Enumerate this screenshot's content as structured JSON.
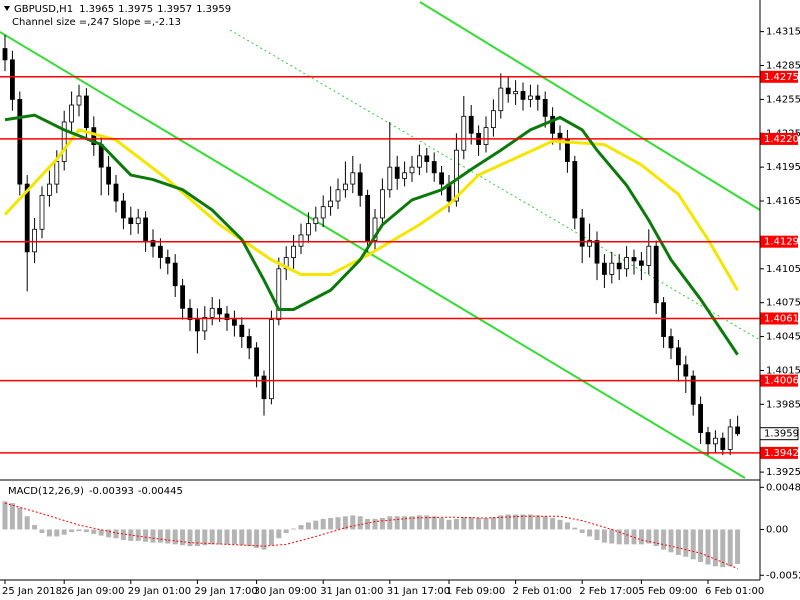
{
  "chart_data": [
    {
      "type": "candlestick",
      "symbol": "GBPUSD,H1",
      "channel_info": "Channel size =,247 Slope =,-2.13",
      "categories": [
        "25 Jan 2018",
        null,
        null,
        null,
        null,
        null,
        null,
        null,
        "26 Jan 09:00",
        null,
        null,
        null,
        null,
        null,
        null,
        null,
        null,
        "29 Jan 01:00",
        null,
        null,
        null,
        null,
        null,
        null,
        null,
        null,
        "29 Jan 17:00",
        null,
        null,
        null,
        null,
        null,
        null,
        null,
        "30 Jan 09:00",
        null,
        null,
        null,
        null,
        null,
        null,
        null,
        null,
        "31 Jan 01:00",
        null,
        null,
        null,
        null,
        null,
        null,
        null,
        null,
        "31 Jan 17:00",
        null,
        null,
        null,
        null,
        null,
        null,
        null,
        "1 Feb 09:00",
        null,
        null,
        null,
        null,
        null,
        null,
        null,
        null,
        "2 Feb 01:00",
        null,
        null,
        null,
        null,
        null,
        null,
        null,
        null,
        "2 Feb 17:00",
        null,
        null,
        null,
        null,
        null,
        null,
        null,
        "5 Feb 09:00",
        null,
        null,
        null,
        null,
        null,
        null,
        null,
        null,
        "6 Feb 01:00",
        null,
        null,
        null,
        null
      ],
      "open": [
        1.43,
        1.429,
        1.4255,
        1.418,
        1.412,
        1.414,
        1.417,
        1.418,
        1.42,
        1.4235,
        1.425,
        1.4258,
        1.423,
        1.4215,
        1.4195,
        1.418,
        1.4165,
        1.415,
        1.4145,
        1.415,
        1.413,
        1.4125,
        1.4115,
        1.411,
        1.409,
        1.407,
        1.406,
        1.405,
        1.4062,
        1.407,
        1.4065,
        1.406,
        1.4055,
        1.4045,
        1.4035,
        1.401,
        1.399,
        1.406,
        1.4105,
        1.4115,
        1.4125,
        1.4135,
        1.4145,
        1.415,
        1.416,
        1.4165,
        1.4175,
        1.418,
        1.419,
        1.417,
        1.413,
        1.415,
        1.4175,
        1.4195,
        1.4185,
        1.419,
        1.4195,
        1.4205,
        1.42,
        1.419,
        1.418,
        1.4165,
        1.421,
        1.424,
        1.4225,
        1.4215,
        1.423,
        1.4245,
        1.4265,
        1.426,
        1.4262,
        1.4255,
        1.4258,
        1.4255,
        1.424,
        1.4225,
        1.422,
        1.42,
        1.415,
        1.4125,
        1.413,
        1.411,
        1.41,
        1.411,
        1.4105,
        1.4115,
        1.4112,
        1.4108,
        1.4125,
        1.4075,
        1.4045,
        1.4035,
        1.402,
        1.401,
        1.3985,
        1.396,
        1.395,
        1.3955,
        1.3945,
        1.3965
      ],
      "high": [
        1.4312,
        1.4298,
        1.4262,
        1.4188,
        1.415,
        1.4178,
        1.4192,
        1.421,
        1.4245,
        1.4262,
        1.4268,
        1.4265,
        1.424,
        1.4222,
        1.4205,
        1.4188,
        1.4172,
        1.416,
        1.4158,
        1.4156,
        1.414,
        1.4132,
        1.4122,
        1.4118,
        1.4096,
        1.4078,
        1.407,
        1.4072,
        1.408,
        1.4078,
        1.4072,
        1.4068,
        1.4062,
        1.4052,
        1.404,
        1.4015,
        1.4068,
        1.4115,
        1.4125,
        1.4135,
        1.4145,
        1.4155,
        1.416,
        1.417,
        1.4178,
        1.4185,
        1.42,
        1.4205,
        1.4198,
        1.4175,
        1.4158,
        1.4185,
        1.4235,
        1.4205,
        1.42,
        1.4205,
        1.4215,
        1.4212,
        1.4208,
        1.4196,
        1.4188,
        1.4225,
        1.4258,
        1.425,
        1.4232,
        1.424,
        1.4255,
        1.4278,
        1.4275,
        1.4272,
        1.427,
        1.4268,
        1.4268,
        1.4262,
        1.4248,
        1.4232,
        1.4228,
        1.4205,
        1.4158,
        1.4145,
        1.4138,
        1.4118,
        1.412,
        1.4118,
        1.4125,
        1.4122,
        1.412,
        1.414,
        1.413,
        1.408,
        1.4052,
        1.4042,
        1.4028,
        1.4015,
        1.3992,
        1.3965,
        1.3962,
        1.396,
        1.3972,
        1.3975
      ],
      "low": [
        1.428,
        1.4245,
        1.417,
        1.4085,
        1.411,
        1.4132,
        1.416,
        1.4172,
        1.4192,
        1.4225,
        1.424,
        1.422,
        1.4205,
        1.417,
        1.417,
        1.4155,
        1.414,
        1.4135,
        1.4136,
        1.412,
        1.4115,
        1.4105,
        1.41,
        1.408,
        1.406,
        1.405,
        1.403,
        1.4042,
        1.4055,
        1.4058,
        1.405,
        1.4045,
        1.4035,
        1.4025,
        1.4,
        1.3975,
        1.3985,
        1.4055,
        1.4095,
        1.4105,
        1.4118,
        1.4128,
        1.4138,
        1.4142,
        1.4152,
        1.4158,
        1.4168,
        1.4172,
        1.416,
        1.412,
        1.4122,
        1.4142,
        1.4168,
        1.4175,
        1.4178,
        1.4182,
        1.4188,
        1.419,
        1.4182,
        1.417,
        1.4155,
        1.416,
        1.4202,
        1.4215,
        1.4205,
        1.4208,
        1.4222,
        1.4238,
        1.4252,
        1.425,
        1.4245,
        1.4248,
        1.4245,
        1.423,
        1.4215,
        1.421,
        1.419,
        1.414,
        1.411,
        1.4115,
        1.4095,
        1.4088,
        1.4092,
        1.4095,
        1.4098,
        1.41,
        1.4095,
        1.41,
        1.4065,
        1.4035,
        1.4025,
        1.4005,
        1.3995,
        1.3975,
        1.395,
        1.394,
        1.3942,
        1.394,
        1.394,
        1.3957
      ],
      "close": [
        1.429,
        1.4255,
        1.418,
        1.412,
        1.414,
        1.417,
        1.418,
        1.42,
        1.4235,
        1.425,
        1.4258,
        1.423,
        1.4215,
        1.4195,
        1.418,
        1.4165,
        1.415,
        1.4145,
        1.415,
        1.413,
        1.4125,
        1.4115,
        1.411,
        1.409,
        1.407,
        1.406,
        1.405,
        1.4062,
        1.407,
        1.4065,
        1.406,
        1.4055,
        1.4045,
        1.4035,
        1.401,
        1.399,
        1.406,
        1.4105,
        1.4115,
        1.4125,
        1.4135,
        1.4145,
        1.415,
        1.416,
        1.4165,
        1.4175,
        1.418,
        1.419,
        1.417,
        1.413,
        1.415,
        1.4175,
        1.4195,
        1.4185,
        1.419,
        1.4195,
        1.4205,
        1.42,
        1.419,
        1.418,
        1.4165,
        1.421,
        1.424,
        1.4225,
        1.4215,
        1.423,
        1.4245,
        1.4265,
        1.426,
        1.4262,
        1.4255,
        1.4258,
        1.4255,
        1.424,
        1.4225,
        1.422,
        1.42,
        1.415,
        1.4125,
        1.413,
        1.411,
        1.41,
        1.411,
        1.4105,
        1.4115,
        1.4112,
        1.4108,
        1.4125,
        1.4075,
        1.4045,
        1.4035,
        1.402,
        1.401,
        1.3985,
        1.396,
        1.395,
        1.3955,
        1.3945,
        1.3965,
        1.3959
      ],
      "up_color": "#ffffff",
      "down_color": "#000000",
      "series": [
        {
          "color": "#f5e600",
          "x": [
            0,
            7,
            10,
            15,
            22,
            29,
            36,
            40,
            44,
            49,
            56,
            60,
            64,
            70,
            74,
            81,
            86,
            91,
            95,
            99
          ],
          "values": [
            1.4153,
            1.4202,
            1.4228,
            1.4219,
            1.4184,
            1.4144,
            1.4113,
            1.41,
            1.41,
            1.4117,
            1.4144,
            1.4162,
            1.4188,
            1.4206,
            1.4218,
            1.4215,
            1.4197,
            1.4171,
            1.4131,
            1.4086
          ]
        },
        {
          "color": "#0b7a0b",
          "x": [
            0,
            4,
            8,
            13,
            17,
            20,
            24,
            28,
            32,
            35,
            37,
            39,
            44,
            48,
            51,
            55,
            59,
            63,
            67,
            71,
            75,
            78,
            80,
            84,
            87,
            90,
            94,
            99
          ],
          "values": [
            1.4237,
            1.4241,
            1.4228,
            1.4215,
            1.4188,
            1.4184,
            1.4175,
            1.4157,
            1.4131,
            1.4095,
            1.4069,
            1.4069,
            1.4086,
            1.4113,
            1.4144,
            1.4166,
            1.4175,
            1.4193,
            1.421,
            1.4228,
            1.4239,
            1.4228,
            1.421,
            1.4179,
            1.4148,
            1.4113,
            1.4078,
            1.4029
          ]
        }
      ],
      "levels": [
        1.4275,
        {
          "value": 1.422,
          "label": "1.4220"
        },
        1.4129,
        1.4061,
        1.4006,
        1.3942
      ],
      "level_color": "#ff0000",
      "ylim": [
        1.3918,
        1.4343
      ],
      "yticks": [
        1.4315,
        1.4285,
        1.4255,
        1.4225,
        1.4195,
        1.4165,
        1.4105,
        1.4075,
        1.4045,
        1.4015,
        1.3985,
        1.3925
      ]
    },
    {
      "type": "macd",
      "title": "MACD(12,26,9)",
      "values": [
        0.0032,
        0.003,
        0.0025,
        0.0015,
        0.0005,
        -0.0004,
        -0.0008,
        -0.0008,
        -0.0006,
        -0.0003,
        -0.0002,
        -0.0003,
        -0.0005,
        -0.0007,
        -0.0009,
        -0.001,
        -0.0012,
        -0.0013,
        -0.0013,
        -0.0014,
        -0.0015,
        -0.0015,
        -0.0016,
        -0.0017,
        -0.0018,
        -0.0019,
        -0.0019,
        -0.0018,
        -0.0017,
        -0.0017,
        -0.0017,
        -0.0017,
        -0.0018,
        -0.0019,
        -0.0021,
        -0.0023,
        -0.0018,
        -0.001,
        -0.0004,
        0.0001,
        0.0005,
        0.0008,
        0.001,
        0.0012,
        0.0013,
        0.0014,
        0.0015,
        0.0016,
        0.0015,
        0.0012,
        0.0012,
        0.0013,
        0.0015,
        0.0015,
        0.0015,
        0.0015,
        0.0016,
        0.0016,
        0.0015,
        0.0013,
        0.0011,
        0.0012,
        0.0014,
        0.0014,
        0.0013,
        0.0013,
        0.0014,
        0.0016,
        0.0017,
        0.0017,
        0.0017,
        0.0017,
        0.0016,
        0.0015,
        0.0013,
        0.0011,
        0.0008,
        0.0002,
        -0.0004,
        -0.0008,
        -0.0012,
        -0.0015,
        -0.0016,
        -0.0017,
        -0.0017,
        -0.0017,
        -0.0017,
        -0.0016,
        -0.0019,
        -0.0023,
        -0.0026,
        -0.0029,
        -0.0031,
        -0.0034,
        -0.0037,
        -0.004,
        -0.0042,
        -0.0043,
        -0.0042,
        -0.00393
      ],
      "color": "#b4b4b4",
      "signal": {
        "color": "#ff0000",
        "x": [
          0,
          5,
          10,
          15,
          20,
          25,
          30,
          35,
          38,
          42,
          46,
          50,
          55,
          60,
          65,
          70,
          75,
          78,
          82,
          86,
          90,
          94,
          99
        ],
        "values": [
          0.003,
          0.0018,
          0.0005,
          -0.0004,
          -0.001,
          -0.0015,
          -0.0017,
          -0.0019,
          -0.0017,
          -0.0008,
          0.0002,
          0.0009,
          0.0013,
          0.0014,
          0.0013,
          0.0015,
          0.0015,
          0.001,
          0.0,
          -0.0012,
          -0.0019,
          -0.0027,
          -0.00445
        ]
      },
      "ylim": [
        -0.00576,
        0.00552
      ],
      "yticks": [
        0.0048,
        {
          "value": 0,
          "label": "0.00"
        },
        -0.00522
      ]
    }
  ]
}
